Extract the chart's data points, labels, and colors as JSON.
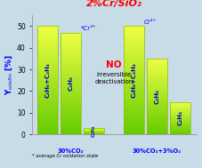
{
  "title": "2%Cr/SiO₂",
  "title_color": "#ff0000",
  "ylabel": "Y$_{olefin}$ [%]",
  "ylabel_color": "blue",
  "ylim": [
    0,
    55
  ],
  "yticks": [
    0,
    10,
    20,
    30,
    40,
    50
  ],
  "background_color": "#c8dce8",
  "groups": [
    {
      "label": "30%CO₂",
      "label_color": "blue",
      "bars": [
        {
          "value": 50,
          "label": "C₃H₆+C₂H₄",
          "color_top": "#eeff44",
          "color_bottom": "#66cc00"
        },
        {
          "value": 47,
          "label": "C₃H₆",
          "color_top": "#eeff44",
          "color_bottom": "#66cc00"
        },
        {
          "value": 3,
          "label": "C₂H₄",
          "color_top": "#eeff44",
          "color_bottom": "#66cc00"
        }
      ],
      "cr_label": "*Cr²⁺",
      "cr_color": "blue",
      "cr_bar_idx": 1
    },
    {
      "label": "30%CO₂+3%O₂",
      "label_color": "blue",
      "bars": [
        {
          "value": 50,
          "label": "C₃H₆+C₂H₄",
          "color_top": "#eeff44",
          "color_bottom": "#66cc00"
        },
        {
          "value": 35,
          "label": "C₃H₆",
          "color_top": "#eeff44",
          "color_bottom": "#66cc00"
        },
        {
          "value": 15,
          "label": "C₂H₄",
          "color_top": "#eeff44",
          "color_bottom": "#66cc00"
        }
      ],
      "cr_label": "Cr³⁺",
      "cr_color": "blue",
      "cr_bar_idx": 0
    }
  ],
  "no_line1": "NO",
  "no_line2": "irreversible",
  "no_line3": "deactivation",
  "footnote": "* average Cr oxidation state",
  "bar_width": 0.13,
  "bar_gap": 0.015,
  "group_sep": 0.12
}
